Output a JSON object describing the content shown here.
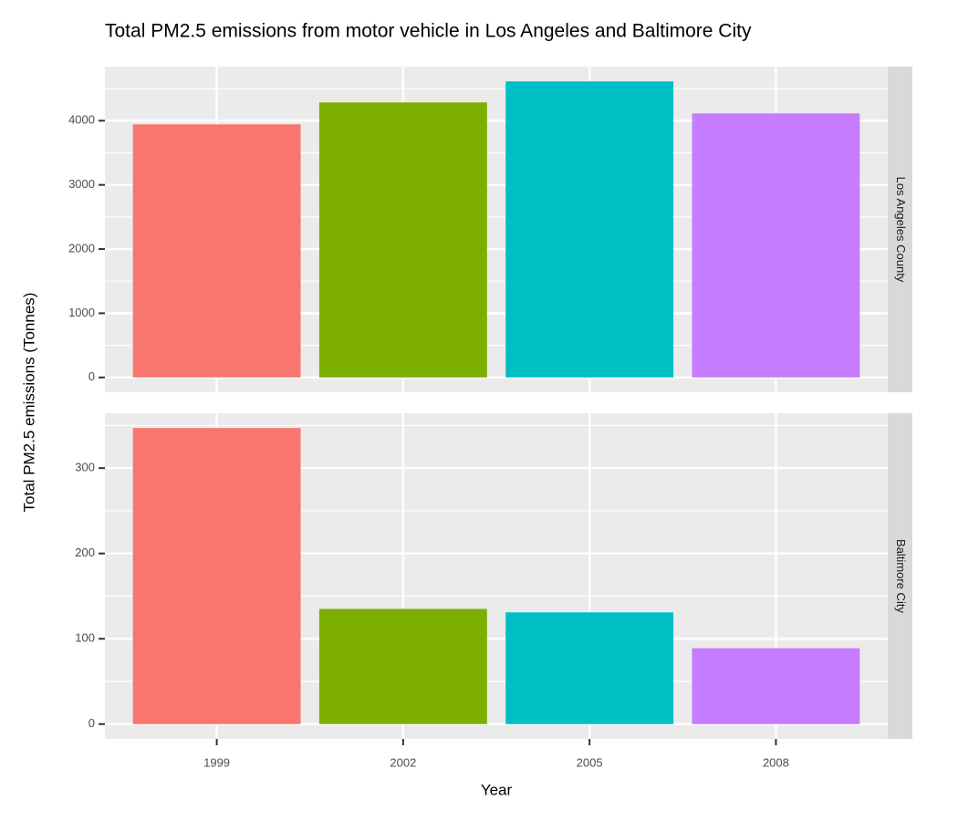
{
  "chart_data": {
    "type": "bar",
    "title": "Total PM2.5 emissions from motor vehicle in Los Angeles and Baltimore City",
    "x_label": "Year",
    "y_label": "Total PM2.5 emissions (Tonnes)",
    "categories": [
      "1999",
      "2002",
      "2005",
      "2008"
    ],
    "colors": [
      "#f8766d",
      "#7cae00",
      "#00bfc4",
      "#c77cff"
    ],
    "grid": true,
    "facets": [
      {
        "name": "Los Angeles County",
        "values": [
          3943,
          4285,
          4612,
          4114
        ],
        "ylim": [
          -231,
          4843
        ],
        "yticks": [
          0,
          1000,
          2000,
          3000,
          4000
        ],
        "yminor": [
          500,
          1500,
          2500,
          3500,
          4500
        ]
      },
      {
        "name": "Baltimore City",
        "values": [
          347,
          135,
          131,
          89
        ],
        "ylim": [
          -17.35,
          364.35
        ],
        "yticks": [
          0,
          100,
          200,
          300
        ],
        "yminor": [
          50,
          150,
          250,
          350
        ]
      }
    ]
  }
}
